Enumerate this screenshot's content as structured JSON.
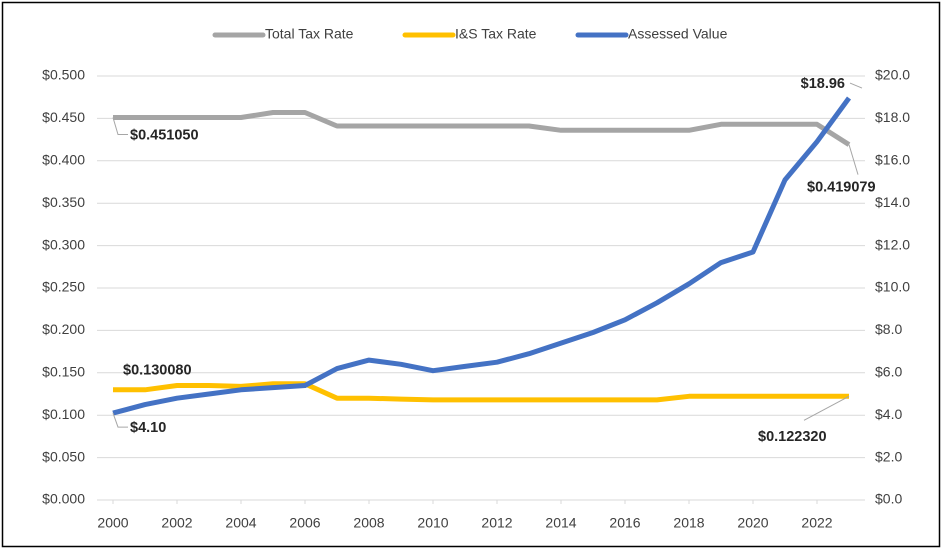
{
  "chart_data": {
    "type": "line",
    "x": [
      2000,
      2001,
      2002,
      2003,
      2004,
      2005,
      2006,
      2007,
      2008,
      2009,
      2010,
      2011,
      2012,
      2013,
      2014,
      2015,
      2016,
      2017,
      2018,
      2019,
      2020,
      2021,
      2022,
      2023
    ],
    "xlim": [
      1999.5,
      2023.5
    ],
    "xticks": [
      2000,
      2002,
      2004,
      2006,
      2008,
      2010,
      2012,
      2014,
      2016,
      2018,
      2020,
      2022
    ],
    "ylim": [
      0,
      0.5
    ],
    "yticks": [
      {
        "value": 0,
        "label": "$0.000"
      },
      {
        "value": 0.05,
        "label": "$0.050"
      },
      {
        "value": 0.1,
        "label": "$0.100"
      },
      {
        "value": 0.15,
        "label": "$0.150"
      },
      {
        "value": 0.2,
        "label": "$0.200"
      },
      {
        "value": 0.25,
        "label": "$0.250"
      },
      {
        "value": 0.3,
        "label": "$0.300"
      },
      {
        "value": 0.35,
        "label": "$0.350"
      },
      {
        "value": 0.4,
        "label": "$0.400"
      },
      {
        "value": 0.45,
        "label": "$0.450"
      },
      {
        "value": 0.5,
        "label": "$0.500"
      }
    ],
    "y2lim": [
      0,
      20
    ],
    "y2ticks": [
      {
        "value": 0,
        "label": "$0.0"
      },
      {
        "value": 2,
        "label": "$2.0"
      },
      {
        "value": 4,
        "label": "$4.0"
      },
      {
        "value": 6,
        "label": "$6.0"
      },
      {
        "value": 8,
        "label": "$8.0"
      },
      {
        "value": 10,
        "label": "$10.0"
      },
      {
        "value": 12,
        "label": "$12.0"
      },
      {
        "value": 14,
        "label": "$14.0"
      },
      {
        "value": 16,
        "label": "$16.0"
      },
      {
        "value": 18,
        "label": "$18.0"
      },
      {
        "value": 20,
        "label": "$20.0"
      }
    ],
    "grid": true,
    "legend": "top",
    "series": [
      {
        "name": "Total Tax Rate",
        "color": "#a5a5a5",
        "values": [
          0.45105,
          0.45105,
          0.45105,
          0.45105,
          0.45105,
          0.457,
          0.457,
          0.441,
          0.441,
          0.441,
          0.441,
          0.441,
          0.441,
          0.441,
          0.436,
          0.436,
          0.436,
          0.436,
          0.436,
          0.443,
          0.443,
          0.443,
          0.443,
          0.419079
        ],
        "value_labels": [
          "$0.451050",
          null,
          null,
          null,
          null,
          null,
          null,
          null,
          null,
          null,
          null,
          null,
          null,
          null,
          null,
          null,
          null,
          null,
          null,
          null,
          null,
          null,
          null,
          "$0.419079"
        ]
      },
      {
        "name": "I&S Tax Rate",
        "color": "#ffc000",
        "values": [
          0.13008,
          0.13,
          0.135,
          0.135,
          0.134,
          0.137,
          0.137,
          0.12,
          0.12,
          0.119,
          0.118,
          0.118,
          0.118,
          0.118,
          0.118,
          0.118,
          0.118,
          0.118,
          0.1223,
          0.1223,
          0.1223,
          0.1223,
          0.1223,
          0.12232
        ],
        "value_labels": [
          "$0.130080",
          null,
          null,
          null,
          null,
          null,
          null,
          null,
          null,
          null,
          null,
          null,
          null,
          null,
          null,
          null,
          null,
          null,
          null,
          null,
          null,
          null,
          null,
          "$0.122320"
        ]
      },
      {
        "name": "Assessed Value",
        "color": "#4472c4",
        "axis": "y2",
        "values": [
          4.1,
          4.5,
          4.8,
          5.0,
          5.2,
          5.3,
          5.4,
          6.2,
          6.6,
          6.4,
          6.1,
          6.3,
          6.5,
          6.9,
          7.4,
          7.9,
          8.5,
          9.3,
          10.2,
          11.2,
          11.7,
          15.1,
          16.9,
          18.96
        ],
        "value_labels": [
          "$4.10",
          null,
          null,
          null,
          null,
          null,
          null,
          null,
          null,
          null,
          null,
          null,
          null,
          null,
          null,
          null,
          null,
          null,
          null,
          null,
          null,
          null,
          null,
          "$18.96"
        ]
      }
    ]
  }
}
